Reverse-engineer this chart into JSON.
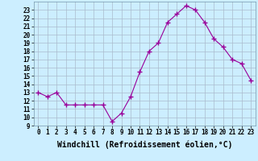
{
  "x": [
    0,
    1,
    2,
    3,
    4,
    5,
    6,
    7,
    8,
    9,
    10,
    11,
    12,
    13,
    14,
    15,
    16,
    17,
    18,
    19,
    20,
    21,
    22,
    23
  ],
  "y": [
    13,
    12.5,
    13,
    11.5,
    11.5,
    11.5,
    11.5,
    11.5,
    9.5,
    10.5,
    12.5,
    15.5,
    18,
    19,
    21.5,
    22.5,
    23.5,
    23,
    21.5,
    19.5,
    18.5,
    17,
    16.5,
    14.5
  ],
  "line_color": "#990099",
  "marker": "+",
  "marker_size": 4,
  "marker_lw": 1.0,
  "bg_color": "#cceeff",
  "grid_color": "#aabbcc",
  "xlabel": "Windchill (Refroidissement éolien,°C)",
  "xlabel_fontsize": 7,
  "ylim": [
    9,
    24
  ],
  "xlim": [
    -0.5,
    23.5
  ],
  "yticks": [
    9,
    10,
    11,
    12,
    13,
    14,
    15,
    16,
    17,
    18,
    19,
    20,
    21,
    22,
    23
  ],
  "xticks": [
    0,
    1,
    2,
    3,
    4,
    5,
    6,
    7,
    8,
    9,
    10,
    11,
    12,
    13,
    14,
    15,
    16,
    17,
    18,
    19,
    20,
    21,
    22,
    23
  ],
  "tick_fontsize": 5.5,
  "line_width": 0.8
}
